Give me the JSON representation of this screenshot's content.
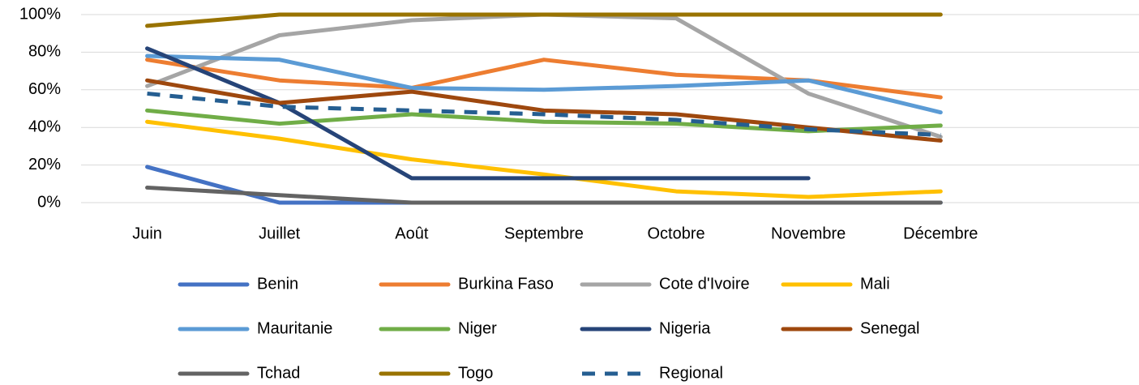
{
  "chart_data": {
    "type": "line",
    "categories": [
      "Juin",
      "Juillet",
      "Août",
      "Septembre",
      "Octobre",
      "Novembre",
      "Décembre",
      null
    ],
    "ylim": [
      0,
      100
    ],
    "yticks": [
      {
        "value": 0,
        "label": "0%"
      },
      {
        "value": 20,
        "label": "20%"
      },
      {
        "value": 40,
        "label": "40%"
      },
      {
        "value": 60,
        "label": "60%"
      },
      {
        "value": 80,
        "label": "80%"
      },
      {
        "value": 100,
        "label": "100%"
      }
    ],
    "grid": true,
    "legend": "bottom",
    "series": [
      {
        "name": "Benin",
        "color": "#4472c4",
        "values": [
          19,
          0,
          0,
          0,
          0,
          0,
          0,
          null
        ]
      },
      {
        "name": "Burkina Faso",
        "color": "#ed7d31",
        "values": [
          76,
          65,
          61,
          76,
          68,
          65,
          56,
          null
        ]
      },
      {
        "name": "Cote d'Ivoire",
        "color": "#a5a5a5",
        "values": [
          62,
          89,
          97,
          100,
          98,
          58,
          35,
          null
        ]
      },
      {
        "name": "Mali",
        "color": "#ffc000",
        "values": [
          43,
          34,
          23,
          15,
          6,
          3,
          6,
          null
        ]
      },
      {
        "name": "Mauritanie",
        "color": "#5b9bd5",
        "values": [
          78,
          76,
          61,
          60,
          62,
          65,
          48,
          null
        ]
      },
      {
        "name": "Niger",
        "color": "#70ad47",
        "values": [
          49,
          42,
          47,
          43,
          42,
          38,
          41,
          null
        ]
      },
      {
        "name": "Nigeria",
        "color": "#264478",
        "values": [
          82,
          53,
          13,
          13,
          13,
          13,
          null,
          null
        ]
      },
      {
        "name": "Senegal",
        "color": "#9e480e",
        "values": [
          65,
          53,
          59,
          49,
          47,
          40,
          33,
          null
        ]
      },
      {
        "name": "Tchad",
        "color": "#636363",
        "values": [
          8,
          4,
          0,
          0,
          0,
          0,
          0,
          null
        ]
      },
      {
        "name": "Togo",
        "color": "#997300",
        "values": [
          94,
          100,
          100,
          100,
          100,
          100,
          100,
          null
        ]
      },
      {
        "name": "Regional",
        "color": "#255e91",
        "dashed": true,
        "values": [
          58,
          51,
          49,
          47,
          44,
          39,
          36,
          null
        ]
      }
    ]
  }
}
